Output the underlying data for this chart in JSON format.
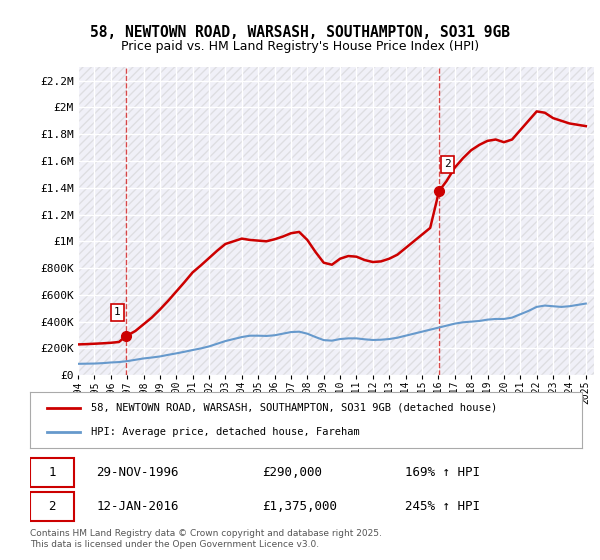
{
  "title_line1": "58, NEWTOWN ROAD, WARSASH, SOUTHAMPTON, SO31 9GB",
  "title_line2": "Price paid vs. HM Land Registry's House Price Index (HPI)",
  "background_color": "#ffffff",
  "plot_bg_color": "#f0f0f8",
  "grid_color": "#ffffff",
  "ylim": [
    0,
    2300000
  ],
  "yticks": [
    0,
    200000,
    400000,
    600000,
    800000,
    1000000,
    1200000,
    1400000,
    1600000,
    1800000,
    2000000,
    2200000
  ],
  "ytick_labels": [
    "£0",
    "£200K",
    "£400K",
    "£600K",
    "£800K",
    "£1M",
    "£1.2M",
    "£1.4M",
    "£1.6M",
    "£1.8M",
    "£2M",
    "£2.2M"
  ],
  "xlim_start": 1994.0,
  "xlim_end": 2025.5,
  "transaction1_date": 1996.91,
  "transaction1_price": 290000,
  "transaction1_label": "1",
  "transaction2_date": 2016.04,
  "transaction2_price": 1375000,
  "transaction2_label": "2",
  "red_line_color": "#cc0000",
  "blue_line_color": "#6699cc",
  "legend_label_red": "58, NEWTOWN ROAD, WARSASH, SOUTHAMPTON, SO31 9GB (detached house)",
  "legend_label_blue": "HPI: Average price, detached house, Fareham",
  "annotation1_date": "29-NOV-1996",
  "annotation1_price": "£290,000",
  "annotation1_hpi": "169% ↑ HPI",
  "annotation2_date": "12-JAN-2016",
  "annotation2_price": "£1,375,000",
  "annotation2_hpi": "245% ↑ HPI",
  "footer": "Contains HM Land Registry data © Crown copyright and database right 2025.\nThis data is licensed under the Open Government Licence v3.0.",
  "hpi_line_data_x": [
    1994.0,
    1994.5,
    1995.0,
    1995.5,
    1996.0,
    1996.5,
    1997.0,
    1997.5,
    1998.0,
    1998.5,
    1999.0,
    1999.5,
    2000.0,
    2000.5,
    2001.0,
    2001.5,
    2002.0,
    2002.5,
    2003.0,
    2003.5,
    2004.0,
    2004.5,
    2005.0,
    2005.5,
    2006.0,
    2006.5,
    2007.0,
    2007.5,
    2008.0,
    2008.5,
    2009.0,
    2009.5,
    2010.0,
    2010.5,
    2011.0,
    2011.5,
    2012.0,
    2012.5,
    2013.0,
    2013.5,
    2014.0,
    2014.5,
    2015.0,
    2015.5,
    2016.0,
    2016.5,
    2017.0,
    2017.5,
    2018.0,
    2018.5,
    2019.0,
    2019.5,
    2020.0,
    2020.5,
    2021.0,
    2021.5,
    2022.0,
    2022.5,
    2023.0,
    2023.5,
    2024.0,
    2024.5,
    2025.0
  ],
  "hpi_line_data_y": [
    85000,
    86000,
    87000,
    90000,
    95000,
    98000,
    105000,
    115000,
    125000,
    132000,
    140000,
    152000,
    163000,
    175000,
    188000,
    200000,
    215000,
    235000,
    255000,
    270000,
    285000,
    295000,
    295000,
    293000,
    298000,
    310000,
    322000,
    325000,
    310000,
    285000,
    262000,
    258000,
    270000,
    275000,
    275000,
    268000,
    263000,
    265000,
    270000,
    280000,
    295000,
    310000,
    325000,
    340000,
    355000,
    370000,
    385000,
    395000,
    400000,
    405000,
    415000,
    420000,
    420000,
    430000,
    455000,
    480000,
    510000,
    520000,
    515000,
    510000,
    515000,
    525000,
    535000
  ],
  "price_line_data_x": [
    1994.0,
    1994.5,
    1995.0,
    1995.5,
    1996.0,
    1996.5,
    1996.91,
    1997.5,
    1998.0,
    1998.5,
    1999.0,
    1999.5,
    2000.0,
    2000.5,
    2001.0,
    2001.5,
    2002.0,
    2002.5,
    2003.0,
    2003.5,
    2004.0,
    2004.5,
    2005.0,
    2005.5,
    2006.0,
    2006.5,
    2007.0,
    2007.5,
    2008.0,
    2008.5,
    2009.0,
    2009.5,
    2010.0,
    2010.5,
    2011.0,
    2011.5,
    2012.0,
    2012.5,
    2013.0,
    2013.5,
    2014.0,
    2014.5,
    2015.0,
    2015.5,
    2016.04,
    2016.5,
    2017.0,
    2017.5,
    2018.0,
    2018.5,
    2019.0,
    2019.5,
    2020.0,
    2020.5,
    2021.0,
    2021.5,
    2022.0,
    2022.5,
    2023.0,
    2023.5,
    2024.0,
    2024.5,
    2025.0
  ],
  "price_line_data_y": [
    230000,
    232000,
    235000,
    238000,
    242000,
    248000,
    290000,
    330000,
    380000,
    430000,
    490000,
    555000,
    625000,
    695000,
    768000,
    820000,
    875000,
    930000,
    980000,
    1000000,
    1020000,
    1010000,
    1005000,
    1000000,
    1015000,
    1035000,
    1060000,
    1070000,
    1010000,
    920000,
    840000,
    825000,
    870000,
    890000,
    885000,
    860000,
    845000,
    850000,
    870000,
    900000,
    950000,
    1000000,
    1050000,
    1100000,
    1375000,
    1450000,
    1550000,
    1620000,
    1680000,
    1720000,
    1750000,
    1760000,
    1740000,
    1760000,
    1830000,
    1900000,
    1970000,
    1960000,
    1920000,
    1900000,
    1880000,
    1870000,
    1860000
  ]
}
